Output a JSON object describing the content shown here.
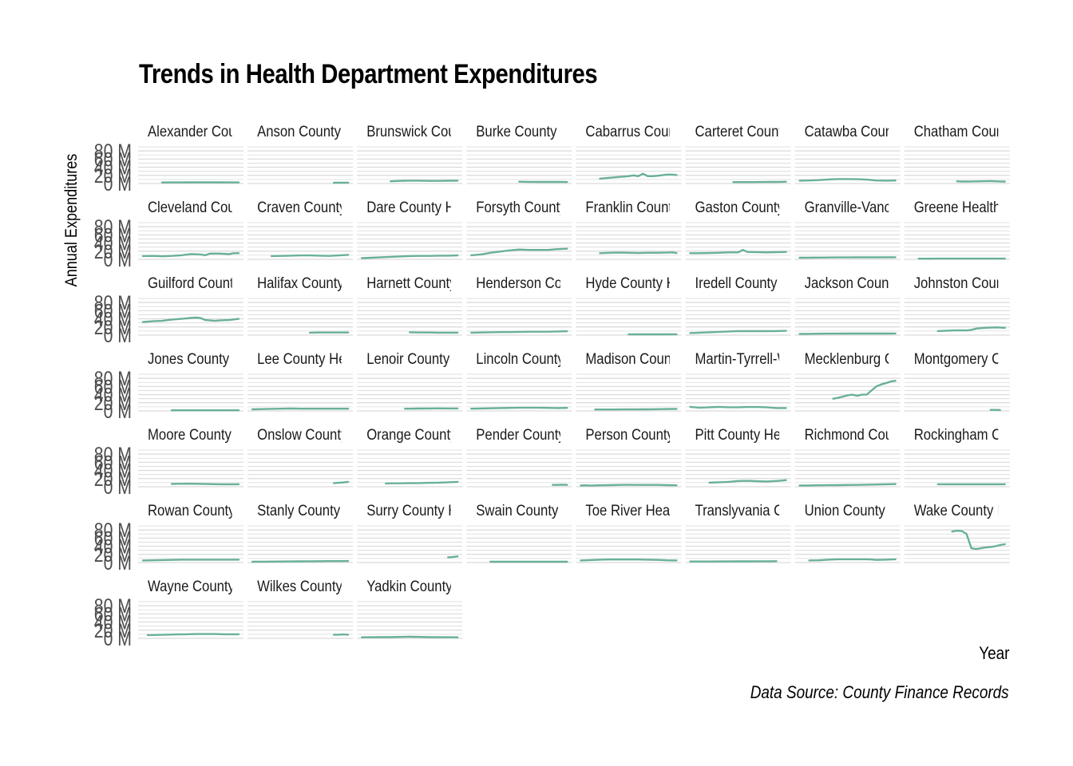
{
  "chart_data": {
    "type": "line",
    "title": "Trends in Health Department Expenditures",
    "xlabel": "Year",
    "ylabel": "Annual Expenditures",
    "caption": "Data Source: County Finance Records",
    "ylim": [
      0,
      90
    ],
    "yticks": [
      "0 M",
      "20 M",
      "40 M",
      "60 M",
      "80 M"
    ],
    "ytick_values": [
      0,
      20,
      40,
      60,
      80
    ],
    "xlim": [
      0,
      20
    ],
    "line_color": "#69b09a",
    "grid_color": "#d9d9d9",
    "facets": [
      {
        "name": "Alexander County Health Department",
        "x": [
          4,
          6,
          8,
          10,
          12,
          14,
          16,
          18,
          20
        ],
        "y": [
          2.5,
          2.7,
          2.8,
          2.9,
          3.0,
          3.0,
          2.9,
          2.8,
          2.7
        ]
      },
      {
        "name": "Anson County Health Department",
        "x": [
          17,
          18,
          19,
          20
        ],
        "y": [
          2.0,
          2.1,
          2.1,
          2.2
        ]
      },
      {
        "name": "Brunswick County Health Department",
        "x": [
          6,
          8,
          10,
          12,
          14,
          16,
          18,
          20
        ],
        "y": [
          5.5,
          6.5,
          7.0,
          7.0,
          6.5,
          6.5,
          6.8,
          7.0
        ]
      },
      {
        "name": "Burke County Health Department",
        "x": [
          10,
          12,
          14,
          16,
          18,
          20
        ],
        "y": [
          4.5,
          4.2,
          4.0,
          3.9,
          3.9,
          3.8
        ]
      },
      {
        "name": "Cabarrus County Health Department",
        "x": [
          4,
          6,
          8,
          10,
          11,
          12,
          13,
          14,
          15,
          16,
          18,
          19,
          20
        ],
        "y": [
          12,
          14,
          16,
          18,
          20,
          18,
          24,
          18,
          18,
          19,
          22,
          22,
          21
        ]
      },
      {
        "name": "Carteret County Health Department",
        "x": [
          9,
          11,
          13,
          15,
          17,
          19,
          20
        ],
        "y": [
          3.5,
          3.5,
          3.6,
          3.7,
          3.9,
          4.2,
          4.5
        ]
      },
      {
        "name": "Catawba County Health Department",
        "x": [
          0,
          2,
          4,
          6,
          8,
          10,
          12,
          14,
          16,
          18,
          20
        ],
        "y": [
          7,
          7.5,
          8.5,
          10,
          11,
          11,
          10.5,
          9.5,
          7.5,
          7.0,
          7.5
        ]
      },
      {
        "name": "Chatham County Health Department",
        "x": [
          10,
          11,
          13,
          15,
          17,
          19,
          20
        ],
        "y": [
          5.5,
          4.8,
          5.0,
          5.5,
          6.0,
          5.0,
          4.8
        ]
      },
      {
        "name": "Cleveland County Health Department",
        "x": [
          0,
          2,
          4,
          6,
          8,
          10,
          11,
          12,
          13,
          14,
          16,
          18,
          19,
          20
        ],
        "y": [
          8,
          8.5,
          7.5,
          8.5,
          10,
          13,
          12.5,
          12,
          10,
          14,
          14,
          13,
          15,
          15
        ]
      },
      {
        "name": "Craven County Health Department",
        "x": [
          4,
          6,
          8,
          10,
          12,
          14,
          16,
          18,
          20
        ],
        "y": [
          8,
          8.5,
          9,
          9.5,
          9.5,
          9.0,
          8.5,
          9.5,
          11
        ]
      },
      {
        "name": "Dare County Health Department",
        "x": [
          0,
          2,
          4,
          6,
          8,
          10,
          12,
          14,
          16,
          18,
          20
        ],
        "y": [
          3,
          4,
          5,
          6,
          7,
          8,
          8.5,
          8.5,
          9,
          9,
          9.5
        ]
      },
      {
        "name": "Forsyth County Health Department",
        "x": [
          0,
          2,
          4,
          6,
          8,
          10,
          12,
          14,
          16,
          18,
          20
        ],
        "y": [
          10,
          12,
          16,
          19,
          22,
          24,
          23,
          23,
          23,
          25,
          26
        ]
      },
      {
        "name": "Franklin County Health Department",
        "x": [
          4,
          6,
          8,
          10,
          12,
          14,
          16,
          18,
          19,
          20
        ],
        "y": [
          15,
          16,
          16.5,
          16,
          15.5,
          16,
          16,
          16.5,
          17,
          15.5
        ]
      },
      {
        "name": "Gaston County Health Department",
        "x": [
          0,
          2,
          4,
          6,
          8,
          10,
          11,
          12,
          14,
          16,
          18,
          20
        ],
        "y": [
          15,
          15,
          15.5,
          16,
          17,
          17,
          23,
          18,
          17.5,
          17,
          17.5,
          18
        ]
      },
      {
        "name": "Granville-Vance District Health Department",
        "x": [
          0,
          2,
          4,
          6,
          8,
          10,
          12,
          14,
          16,
          18,
          20
        ],
        "y": [
          4,
          4.2,
          4.4,
          4.5,
          4.6,
          4.7,
          4.8,
          4.8,
          4.9,
          5.0,
          5.0
        ]
      },
      {
        "name": "Greene Health Department",
        "x": [
          2,
          4,
          6,
          8,
          10,
          12,
          14,
          16,
          18,
          20
        ],
        "y": [
          1.5,
          1.6,
          1.7,
          1.7,
          1.8,
          1.8,
          1.8,
          1.8,
          1.8,
          1.8
        ]
      },
      {
        "name": "Guilford County Health Department",
        "x": [
          0,
          2,
          4,
          6,
          8,
          10,
          11,
          12,
          13,
          14,
          15,
          16,
          18,
          20
        ],
        "y": [
          32,
          34,
          35,
          38,
          40,
          42,
          43,
          42,
          37,
          36,
          35,
          36,
          37,
          40
        ]
      },
      {
        "name": "Halifax County Health Department",
        "x": [
          12,
          14,
          16,
          18,
          20
        ],
        "y": [
          6,
          6.5,
          6.5,
          6.5,
          6.5
        ]
      },
      {
        "name": "Harnett County Health Department",
        "x": [
          10,
          12,
          14,
          16,
          18,
          20
        ],
        "y": [
          7,
          6.5,
          6.5,
          6.0,
          6.0,
          6.0
        ]
      },
      {
        "name": "Henderson County Health Department",
        "x": [
          0,
          2,
          4,
          6,
          8,
          10,
          12,
          14,
          16,
          18,
          20
        ],
        "y": [
          6,
          6.5,
          7,
          7.5,
          7.5,
          8,
          8.5,
          8.5,
          8.5,
          9,
          9.5
        ]
      },
      {
        "name": "Hyde County Health Department",
        "x": [
          10,
          12,
          14,
          16,
          18,
          20
        ],
        "y": [
          2.0,
          2.0,
          2.0,
          2.0,
          2.0,
          2.1
        ]
      },
      {
        "name": "Iredell County Health Department",
        "x": [
          0,
          2,
          4,
          6,
          8,
          10,
          12,
          14,
          16,
          18,
          20
        ],
        "y": [
          5,
          6,
          7,
          8,
          9,
          10,
          9.8,
          9.8,
          9.8,
          10,
          10.5
        ]
      },
      {
        "name": "Jackson County Health Department",
        "x": [
          0,
          2,
          4,
          6,
          8,
          10,
          12,
          14,
          16,
          18,
          20
        ],
        "y": [
          3,
          3.2,
          3.5,
          3.7,
          3.8,
          3.9,
          4.0,
          4.0,
          4.0,
          4.0,
          4.1
        ]
      },
      {
        "name": "Johnston County Health Department",
        "x": [
          6,
          8,
          10,
          12,
          13,
          14,
          16,
          18,
          20
        ],
        "y": [
          10,
          11,
          12,
          11.5,
          13,
          16,
          18,
          19,
          18
        ]
      },
      {
        "name": "Jones County Health Department",
        "x": [
          6,
          8,
          10,
          12,
          14,
          16,
          18,
          20
        ],
        "y": [
          1.5,
          1.5,
          1.6,
          1.6,
          1.6,
          1.5,
          1.5,
          1.5
        ]
      },
      {
        "name": "Lee County Health Department",
        "x": [
          0,
          2,
          4,
          6,
          8,
          10,
          12,
          14,
          16,
          18,
          20
        ],
        "y": [
          4,
          4.5,
          5,
          5.5,
          6,
          5.5,
          5.5,
          5.5,
          5.5,
          5.5,
          5.5
        ]
      },
      {
        "name": "Lenoir County Health Department",
        "x": [
          9,
          10,
          12,
          14,
          16,
          18,
          20
        ],
        "y": [
          5.5,
          5.5,
          5.8,
          6,
          6.2,
          6,
          6
        ]
      },
      {
        "name": "Lincoln County Health Department",
        "x": [
          0,
          2,
          4,
          6,
          8,
          10,
          12,
          14,
          16,
          18,
          20
        ],
        "y": [
          5.5,
          6,
          6.5,
          7,
          7.5,
          8,
          8,
          8,
          7.5,
          7,
          7.5
        ]
      },
      {
        "name": "Madison County Health Department",
        "x": [
          3,
          5,
          7,
          9,
          11,
          13,
          15,
          17,
          19,
          20
        ],
        "y": [
          3.5,
          3.5,
          3.6,
          3.7,
          3.8,
          4.0,
          4.2,
          4.5,
          4.8,
          5.0
        ]
      },
      {
        "name": "Martin-Tyrrell-Washington District Health Department",
        "x": [
          0,
          2,
          4,
          6,
          8,
          10,
          12,
          14,
          16,
          18,
          20
        ],
        "y": [
          10,
          8,
          9,
          10,
          9,
          9,
          9.5,
          9.5,
          9,
          7,
          7
        ]
      },
      {
        "name": "Mecklenburg County Health Department",
        "x": [
          7,
          8,
          9,
          10,
          11,
          12,
          13,
          14,
          15,
          16,
          17,
          18,
          19,
          20
        ],
        "y": [
          30,
          32,
          35,
          38,
          40,
          37,
          40,
          40,
          50,
          60,
          65,
          68,
          72,
          74
        ]
      },
      {
        "name": "Montgomery County Health Department",
        "x": [
          17,
          18,
          19
        ],
        "y": [
          2.5,
          2.5,
          2.4
        ]
      },
      {
        "name": "Moore County Health Department",
        "x": [
          6,
          8,
          10,
          12,
          14,
          16,
          18,
          20
        ],
        "y": [
          7,
          7.2,
          7.5,
          7.0,
          6.5,
          6.0,
          6.0,
          6.0
        ]
      },
      {
        "name": "Onslow County Health Department",
        "x": [
          17,
          18,
          19,
          20
        ],
        "y": [
          9,
          9.5,
          10.5,
          12
        ]
      },
      {
        "name": "Orange County Health Department",
        "x": [
          5,
          6,
          8,
          10,
          12,
          14,
          16,
          18,
          20
        ],
        "y": [
          8,
          8.5,
          8.5,
          8.8,
          9,
          9.5,
          10,
          11,
          12
        ]
      },
      {
        "name": "Pender County Health Department",
        "x": [
          17,
          18,
          19,
          20
        ],
        "y": [
          4.5,
          4.5,
          5.0,
          4.5
        ]
      },
      {
        "name": "Person County Health Department",
        "x": [
          0,
          1,
          2,
          4,
          6,
          8,
          10,
          12,
          14,
          16,
          18,
          20
        ],
        "y": [
          3.0,
          3.5,
          2.7,
          3.5,
          4.0,
          4.5,
          4.6,
          4.5,
          4.5,
          4.5,
          4.0,
          3.5
        ]
      },
      {
        "name": "Pitt County Health Department",
        "x": [
          4,
          6,
          8,
          10,
          12,
          14,
          16,
          18,
          20
        ],
        "y": [
          10,
          11,
          12,
          14,
          14.5,
          13.5,
          13,
          14,
          16
        ]
      },
      {
        "name": "Richmond County Health Department",
        "x": [
          0,
          2,
          4,
          6,
          8,
          10,
          12,
          14,
          16,
          18,
          20
        ],
        "y": [
          3,
          3.2,
          3.5,
          3.8,
          4,
          4.3,
          4.5,
          5,
          5.5,
          6,
          6.5
        ]
      },
      {
        "name": "Rockingham County Health Department",
        "x": [
          6,
          8,
          10,
          12,
          14,
          16,
          18,
          20
        ],
        "y": [
          6,
          6,
          6,
          6,
          6,
          6,
          6,
          6
        ]
      },
      {
        "name": "Rowan County Health Department",
        "x": [
          0,
          2,
          4,
          6,
          8,
          10,
          12,
          14,
          16,
          18,
          20
        ],
        "y": [
          5,
          5.5,
          6,
          6.5,
          7,
          7,
          7,
          7,
          7,
          7,
          7
        ]
      },
      {
        "name": "Stanly County Health Department",
        "x": [
          0,
          2,
          4,
          6,
          8,
          10,
          12,
          14,
          16,
          18,
          20
        ],
        "y": [
          2.0,
          2.2,
          2.4,
          2.6,
          2.8,
          3.0,
          3.2,
          3.4,
          3.5,
          3.6,
          3.7
        ]
      },
      {
        "name": "Surry County Health Department",
        "x": [
          18,
          19,
          20
        ],
        "y": [
          13,
          13.5,
          15
        ]
      },
      {
        "name": "Swain County Health Department",
        "x": [
          4,
          6,
          8,
          10,
          12,
          14,
          16,
          18,
          20
        ],
        "y": [
          2,
          2,
          2,
          2,
          2,
          2,
          2,
          2,
          2
        ]
      },
      {
        "name": "Toe River Health District",
        "x": [
          0,
          2,
          4,
          6,
          8,
          10,
          12,
          14,
          16,
          18,
          20
        ],
        "y": [
          5,
          6,
          7,
          7.5,
          7.5,
          7.5,
          7.5,
          7.0,
          6.5,
          5.5,
          5
        ]
      },
      {
        "name": "Translyvania County Health Department",
        "x": [
          0,
          2,
          4,
          6,
          8,
          10,
          12,
          14,
          16,
          18
        ],
        "y": [
          2.5,
          2.5,
          2.6,
          2.7,
          2.8,
          2.9,
          3.0,
          3.1,
          3.2,
          3.3
        ]
      },
      {
        "name": "Union County Health Department",
        "x": [
          2,
          4,
          6,
          8,
          10,
          12,
          14,
          15,
          16,
          18,
          20
        ],
        "y": [
          5,
          5.5,
          7,
          8,
          8,
          8,
          8,
          7.5,
          6.5,
          7,
          8
        ]
      },
      {
        "name": "Wake County Health Department",
        "x": [
          9,
          10,
          11,
          12,
          13,
          14,
          15,
          16,
          17,
          18,
          19,
          20
        ],
        "y": [
          76,
          78,
          77,
          70,
          35,
          33,
          35,
          37,
          38,
          40,
          43,
          45
        ]
      },
      {
        "name": "Wayne County Health Department",
        "x": [
          1,
          3,
          5,
          7,
          9,
          11,
          13,
          15,
          17,
          19,
          20
        ],
        "y": [
          8,
          8.5,
          9,
          9.5,
          10,
          10.5,
          10.5,
          10.5,
          10,
          10,
          10
        ]
      },
      {
        "name": "Wilkes County Health Department",
        "x": [
          17,
          18,
          19,
          20
        ],
        "y": [
          9,
          9,
          9.5,
          9
        ]
      },
      {
        "name": "Yadkin County Health Department",
        "x": [
          0,
          2,
          4,
          6,
          8,
          10,
          12,
          14,
          16,
          18,
          20
        ],
        "y": [
          2.5,
          2.7,
          3.0,
          3.0,
          3.5,
          4.0,
          3.5,
          3.0,
          2.8,
          2.8,
          2.5
        ]
      }
    ]
  }
}
